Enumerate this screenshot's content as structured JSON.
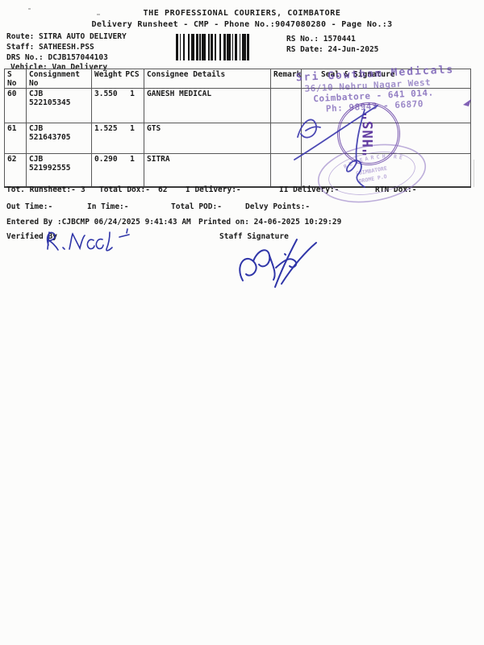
{
  "header": {
    "company": "THE PROFESSIONAL COURIERS, COIMBATORE",
    "subtitle": "Delivery Runsheet - CMP - Phone No.:9047080280 - Page No.:3"
  },
  "meta": {
    "route_line": "Route: SITRA AUTO DELIVERY",
    "staff_line": "Staff: SATHEESH.PSS",
    "drs_line": "DRS No.: DCJB157044103",
    "vehicle_line": "Vehicle: Van Delivery",
    "rs_no_line": "RS No.: 1570441",
    "rs_date_line": "RS Date: 24-Jun-2025"
  },
  "table": {
    "headers": {
      "sno": "S No",
      "consignment": "Consignment No",
      "weight": "Weight",
      "pcs": "PCS",
      "consignee": "Consignee Details",
      "remarks": "Remarks",
      "seal": "Seal & Signature"
    },
    "rows": [
      {
        "sno": "60",
        "consignment": "CJB 522105345",
        "weight": "3.550",
        "pcs": "1",
        "consignee": "GANESH MEDICAL",
        "remarks": ""
      },
      {
        "sno": "61",
        "consignment": "CJB 521643705",
        "weight": "1.525",
        "pcs": "1",
        "consignee": "GTS",
        "remarks": ""
      },
      {
        "sno": "62",
        "consignment": "CJB 521992555",
        "weight": "0.290",
        "pcs": "1",
        "consignee": "SITRA",
        "remarks": ""
      }
    ]
  },
  "totals": {
    "runsheet_label": "Tot. Runsheet:-",
    "runsheet_value": "3",
    "dox_label": "Total Dox:-",
    "dox_value": "62",
    "i_delivery": "I Delivery:-",
    "ii_delivery": "II Delivery:-",
    "rtn_dox": "RTN Dox:-",
    "out_time": "Out Time:-",
    "in_time": "In Time:-",
    "total_pod": "Total POD:-",
    "delvy_points": "Delvy Points:-"
  },
  "footer": {
    "entered_by": "Entered By :CJBCMP 06/24/2025 9:41:43 AM",
    "printed_on": "Printed on: 24-06-2025 10:29:29",
    "verified_by_label": "Verified By",
    "staff_signature_label": "Staff Signature"
  },
  "stamps": {
    "address_stamp": {
      "line1": "Sri Gowtham Medicals",
      "line2": "36/10 Nehru Nagar West",
      "line3": "Coimbatore - 641 014.",
      "line4": "Ph: 98943 - 66870",
      "color": "#6b4fae"
    },
    "hns_stamp": {
      "text": "\"HNS\"",
      "color": "#582e9e"
    },
    "oval_stamp": {
      "ring_text": "RESEARCH RE",
      "center1": "COIMBATORE",
      "center2": "DROME P.O",
      "color": "#8a6fc0"
    }
  },
  "handwriting": {
    "verified_by_signature": "R. Neel",
    "ink_color": "#2f35a8"
  }
}
